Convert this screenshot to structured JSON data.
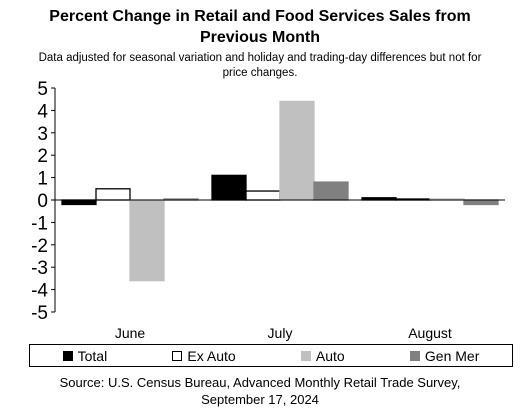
{
  "chart_data": {
    "type": "bar",
    "title_line1": "Percent Change in Retail and Food Services Sales from",
    "title_line2": "Previous Month",
    "subtitle_line1": "Data adjusted for seasonal variation and holiday and trading-day differences but not for",
    "subtitle_line2": "price changes.",
    "categories": [
      "June",
      "July",
      "August"
    ],
    "series": [
      {
        "name": "Total",
        "values": [
          -0.2,
          1.1,
          0.1
        ],
        "fill": "#000000",
        "stroke": "#000000"
      },
      {
        "name": "Ex Auto",
        "values": [
          0.5,
          0.4,
          0.0
        ],
        "fill": "#ffffff",
        "stroke": "#000000"
      },
      {
        "name": "Auto",
        "values": [
          -3.6,
          4.4,
          0.0
        ],
        "fill": "#c0c0c0",
        "stroke": "#c0c0c0"
      },
      {
        "name": "Gen Mer",
        "values": [
          0.0,
          0.8,
          -0.2
        ],
        "fill": "#808080",
        "stroke": "#808080"
      }
    ],
    "ylim": [
      -5,
      5
    ],
    "yticks": [
      "5",
      "4",
      "3",
      "2",
      "1",
      "0",
      "-1",
      "-2",
      "-3",
      "-4",
      "-5"
    ],
    "grid": false,
    "legend_position": "bottom",
    "source_line1": "Source: U.S. Census Bureau, Advanced Monthly Retail Trade Survey,",
    "source_line2": "September 17, 2024"
  }
}
